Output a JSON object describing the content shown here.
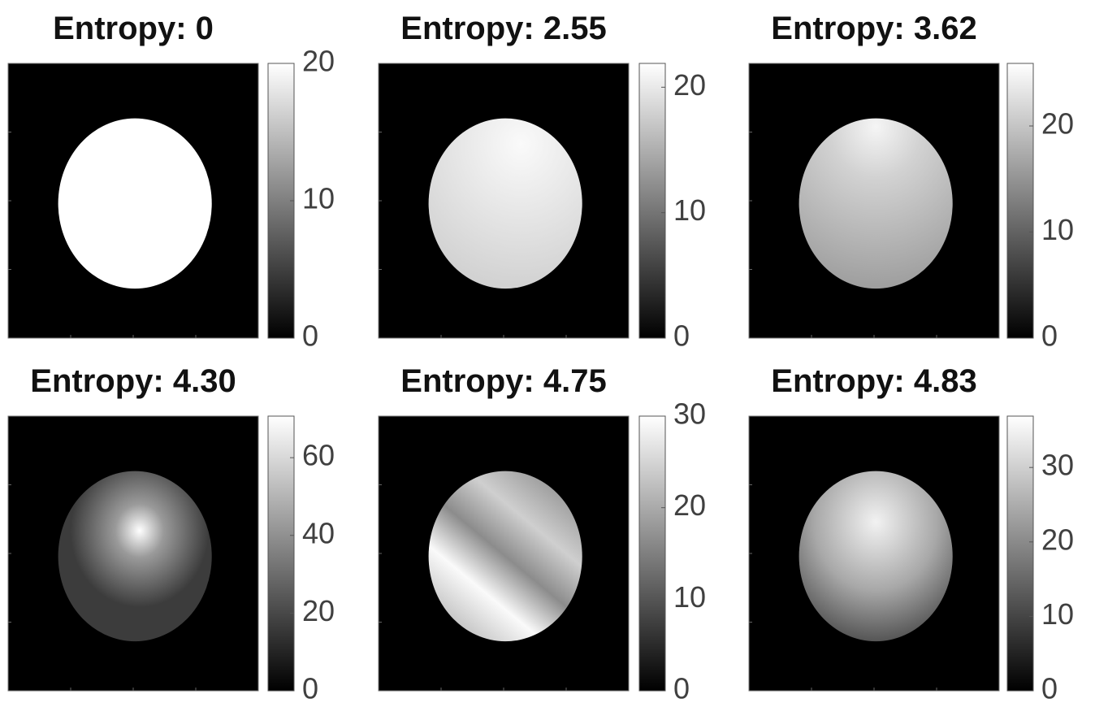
{
  "chart_data": [
    {
      "type": "image",
      "title": "Entropy: 0",
      "clim": [
        0,
        20
      ],
      "cticks": [
        0,
        10,
        20
      ]
    },
    {
      "type": "image",
      "title": "Entropy: 2.55",
      "clim": [
        0,
        21.9
      ],
      "cticks": [
        0,
        10,
        20
      ]
    },
    {
      "type": "image",
      "title": "Entropy: 3.62",
      "clim": [
        0,
        25.9
      ],
      "cticks": [
        0,
        10,
        20
      ]
    },
    {
      "type": "image",
      "title": "Entropy: 4.30",
      "clim": [
        0,
        70.7
      ],
      "cticks": [
        0,
        20,
        40,
        60
      ]
    },
    {
      "type": "image",
      "title": "Entropy: 4.75",
      "clim": [
        0,
        30
      ],
      "cticks": [
        0,
        10,
        20,
        30
      ]
    },
    {
      "type": "image",
      "title": "Entropy: 4.83",
      "clim": [
        0,
        36.9
      ],
      "cticks": [
        0,
        10,
        20,
        30
      ]
    }
  ]
}
